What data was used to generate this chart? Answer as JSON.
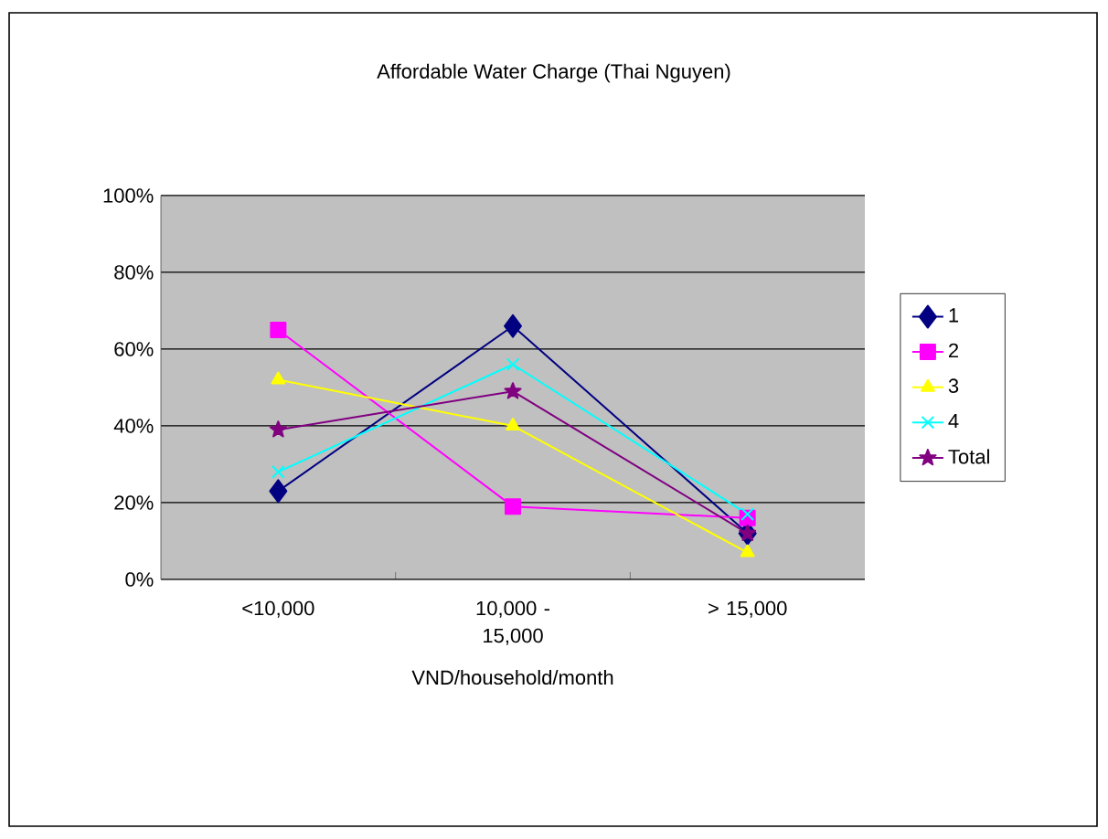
{
  "chart_data": {
    "type": "line",
    "title": "Affordable Water Charge (Thai Nguyen)",
    "xlabel": "VND/household/month",
    "categories": [
      "<10,000",
      "10,000 - 15,000",
      "> 15,000"
    ],
    "series": [
      {
        "name": "1",
        "color": "#000080",
        "marker": "diamond",
        "values": [
          23,
          66,
          12
        ]
      },
      {
        "name": "2",
        "color": "#ff00ff",
        "marker": "square",
        "values": [
          65,
          19,
          16
        ]
      },
      {
        "name": "3",
        "color": "#ffff00",
        "marker": "triangle",
        "values": [
          52,
          40,
          7
        ]
      },
      {
        "name": "4",
        "color": "#00ffff",
        "marker": "cross",
        "values": [
          28,
          56,
          17
        ]
      },
      {
        "name": "Total",
        "color": "#800080",
        "marker": "star",
        "values": [
          39,
          49,
          12
        ]
      }
    ],
    "ylim": [
      0,
      100
    ],
    "yticks": [
      {
        "value": 0,
        "label": "0%"
      },
      {
        "value": 20,
        "label": "20%"
      },
      {
        "value": 40,
        "label": "40%"
      },
      {
        "value": 60,
        "label": "60%"
      },
      {
        "value": 80,
        "label": "80%"
      },
      {
        "value": 100,
        "label": "100%"
      }
    ],
    "grid": "y",
    "legend": "right"
  }
}
